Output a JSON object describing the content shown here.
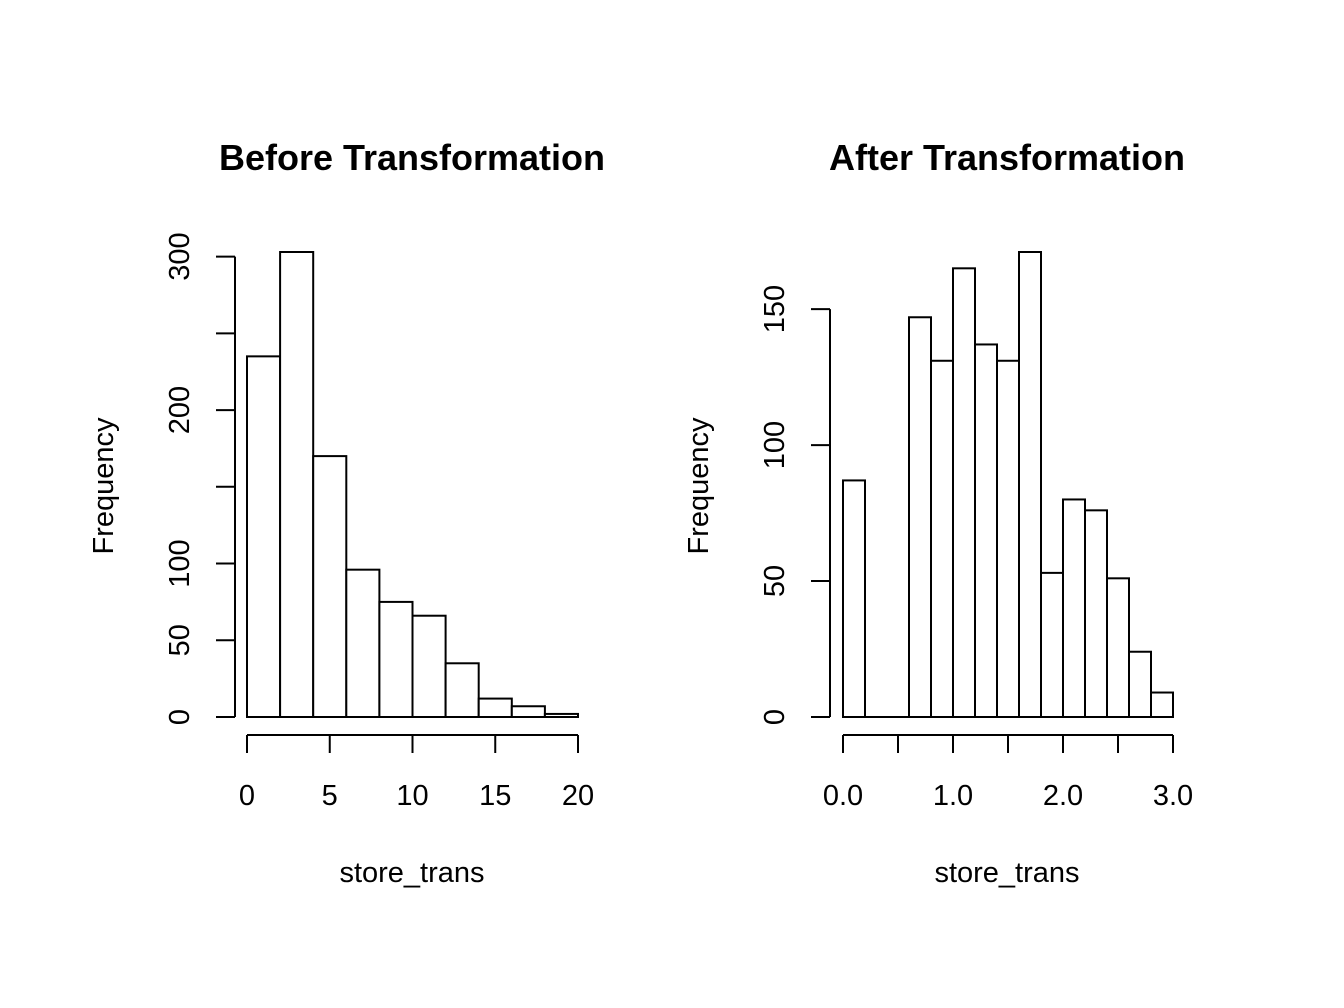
{
  "chart_data": [
    {
      "type": "bar",
      "title": "Before Transformation",
      "xlabel": "store_trans",
      "ylabel": "Frequency",
      "bins": [
        [
          0,
          2
        ],
        [
          2,
          4
        ],
        [
          4,
          6
        ],
        [
          6,
          8
        ],
        [
          8,
          10
        ],
        [
          10,
          12
        ],
        [
          12,
          14
        ],
        [
          14,
          16
        ],
        [
          16,
          18
        ],
        [
          18,
          20
        ]
      ],
      "values": [
        235,
        303,
        170,
        96,
        75,
        66,
        35,
        12,
        7,
        2
      ],
      "xlim": [
        0,
        20
      ],
      "ylim": [
        0,
        303
      ],
      "xticks": [
        0,
        5,
        10,
        15,
        20
      ],
      "xtick_labels": [
        "0",
        "5",
        "10",
        "15",
        "20"
      ],
      "yticks": [
        0,
        50,
        100,
        150,
        200,
        250,
        300
      ],
      "ytick_labels": [
        "0",
        "50",
        "100",
        "",
        "200",
        "",
        "300"
      ],
      "grid": false,
      "legend": false
    },
    {
      "type": "bar",
      "title": "After Transformation",
      "xlabel": "store_trans",
      "ylabel": "Frequency",
      "bins": [
        [
          0,
          0.2
        ],
        [
          0.2,
          0.4
        ],
        [
          0.4,
          0.6
        ],
        [
          0.6,
          0.8
        ],
        [
          0.8,
          1.0
        ],
        [
          1.0,
          1.2
        ],
        [
          1.2,
          1.4
        ],
        [
          1.4,
          1.6
        ],
        [
          1.6,
          1.8
        ],
        [
          1.8,
          2.0
        ],
        [
          2.0,
          2.2
        ],
        [
          2.2,
          2.4
        ],
        [
          2.4,
          2.6
        ],
        [
          2.6,
          2.8
        ],
        [
          2.8,
          3.0
        ]
      ],
      "values": [
        87,
        0,
        0,
        147,
        131,
        165,
        137,
        131,
        171,
        53,
        80,
        76,
        51,
        24,
        9
      ],
      "xlim": [
        0,
        3
      ],
      "ylim": [
        0,
        171
      ],
      "xticks": [
        0,
        0.5,
        1.0,
        1.5,
        2.0,
        2.5,
        3.0
      ],
      "xtick_labels": [
        "0.0",
        "",
        "1.0",
        "",
        "2.0",
        "",
        "3.0"
      ],
      "yticks": [
        0,
        50,
        100,
        150
      ],
      "ytick_labels": [
        "0",
        "50",
        "100",
        "150"
      ],
      "grid": false,
      "legend": false
    }
  ]
}
